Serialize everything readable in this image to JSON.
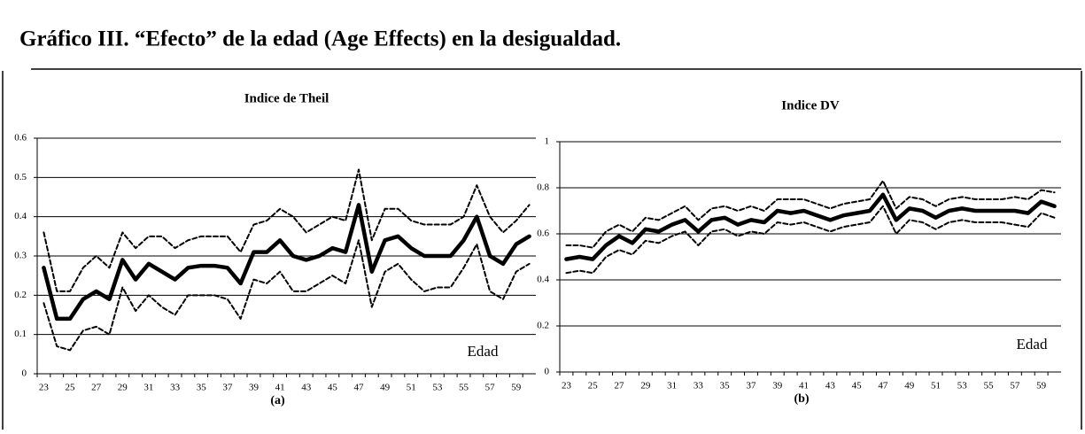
{
  "header": {
    "title": "Gráfico III. “Efecto” de la edad (Age Effects) en la desigualdad."
  },
  "chart_data": [
    {
      "type": "line",
      "title": "Indice de Theil",
      "annotation": "Edad",
      "caption": "(a)",
      "categories": [
        23,
        null,
        25,
        null,
        27,
        null,
        29,
        null,
        31,
        null,
        33,
        null,
        35,
        null,
        37,
        null,
        39,
        null,
        41,
        null,
        43,
        null,
        45,
        null,
        47,
        null,
        49,
        null,
        51,
        null,
        53,
        null,
        55,
        null,
        57,
        null,
        59,
        null
      ],
      "ylim": [
        0,
        0.6
      ],
      "yticks": [
        0,
        0.1,
        0.2,
        0.3,
        0.4,
        0.5,
        0.6
      ],
      "grid": true,
      "series": [
        {
          "color": "#000000",
          "style": "solid",
          "values": [
            0.27,
            0.14,
            0.14,
            0.19,
            0.21,
            0.19,
            0.29,
            0.24,
            0.28,
            0.26,
            0.24,
            0.27,
            0.275,
            0.275,
            0.27,
            0.23,
            0.31,
            0.31,
            0.34,
            0.3,
            0.29,
            0.3,
            0.32,
            0.31,
            0.43,
            0.26,
            0.34,
            0.35,
            0.32,
            0.3,
            0.3,
            0.3,
            0.34,
            0.4,
            0.3,
            0.28,
            0.33,
            0.35
          ]
        },
        {
          "color": "#000000",
          "style": "dashed",
          "values": [
            0.36,
            0.21,
            0.21,
            0.27,
            0.3,
            0.27,
            0.36,
            0.32,
            0.35,
            0.35,
            0.32,
            0.34,
            0.35,
            0.35,
            0.35,
            0.31,
            0.38,
            0.39,
            0.42,
            0.4,
            0.36,
            0.38,
            0.4,
            0.39,
            0.52,
            0.34,
            0.42,
            0.42,
            0.39,
            0.38,
            0.38,
            0.38,
            0.4,
            0.48,
            0.4,
            0.36,
            0.39,
            0.43
          ]
        },
        {
          "color": "#000000",
          "style": "dashed",
          "values": [
            0.18,
            0.07,
            0.06,
            0.11,
            0.12,
            0.1,
            0.22,
            0.16,
            0.2,
            0.17,
            0.15,
            0.2,
            0.2,
            0.2,
            0.19,
            0.14,
            0.24,
            0.23,
            0.26,
            0.21,
            0.21,
            0.23,
            0.25,
            0.23,
            0.34,
            0.17,
            0.26,
            0.28,
            0.24,
            0.21,
            0.22,
            0.22,
            0.27,
            0.33,
            0.21,
            0.19,
            0.26,
            0.28
          ]
        }
      ]
    },
    {
      "type": "line",
      "title": "Indice DV",
      "annotation": "Edad",
      "caption": "(b)",
      "categories": [
        23,
        null,
        25,
        null,
        27,
        null,
        29,
        null,
        31,
        null,
        33,
        null,
        35,
        null,
        37,
        null,
        39,
        null,
        41,
        null,
        43,
        null,
        45,
        null,
        47,
        null,
        49,
        null,
        51,
        null,
        53,
        null,
        55,
        null,
        57,
        null,
        59,
        null
      ],
      "ylim": [
        0,
        1
      ],
      "yticks": [
        0,
        0.2,
        0.4,
        0.6,
        0.8,
        1
      ],
      "grid": true,
      "series": [
        {
          "color": "#000000",
          "style": "solid",
          "values": [
            0.49,
            0.5,
            0.49,
            0.55,
            0.59,
            0.56,
            0.62,
            0.61,
            0.64,
            0.66,
            0.61,
            0.66,
            0.67,
            0.64,
            0.66,
            0.65,
            0.7,
            0.69,
            0.7,
            0.68,
            0.66,
            0.68,
            0.69,
            0.7,
            0.77,
            0.66,
            0.71,
            0.7,
            0.67,
            0.7,
            0.71,
            0.7,
            0.7,
            0.7,
            0.7,
            0.69,
            0.74,
            0.72
          ]
        },
        {
          "color": "#000000",
          "style": "dashed",
          "values": [
            0.55,
            0.55,
            0.54,
            0.61,
            0.64,
            0.61,
            0.67,
            0.66,
            0.69,
            0.72,
            0.66,
            0.71,
            0.72,
            0.7,
            0.72,
            0.7,
            0.75,
            0.75,
            0.75,
            0.73,
            0.71,
            0.73,
            0.74,
            0.75,
            0.83,
            0.71,
            0.76,
            0.75,
            0.72,
            0.75,
            0.76,
            0.75,
            0.75,
            0.75,
            0.76,
            0.75,
            0.79,
            0.78
          ]
        },
        {
          "color": "#000000",
          "style": "dashed",
          "values": [
            0.43,
            0.44,
            0.43,
            0.5,
            0.53,
            0.51,
            0.57,
            0.56,
            0.59,
            0.61,
            0.55,
            0.61,
            0.62,
            0.59,
            0.61,
            0.6,
            0.65,
            0.64,
            0.65,
            0.63,
            0.61,
            0.63,
            0.64,
            0.65,
            0.72,
            0.6,
            0.66,
            0.65,
            0.62,
            0.65,
            0.66,
            0.65,
            0.65,
            0.65,
            0.64,
            0.63,
            0.69,
            0.67
          ]
        }
      ]
    }
  ]
}
